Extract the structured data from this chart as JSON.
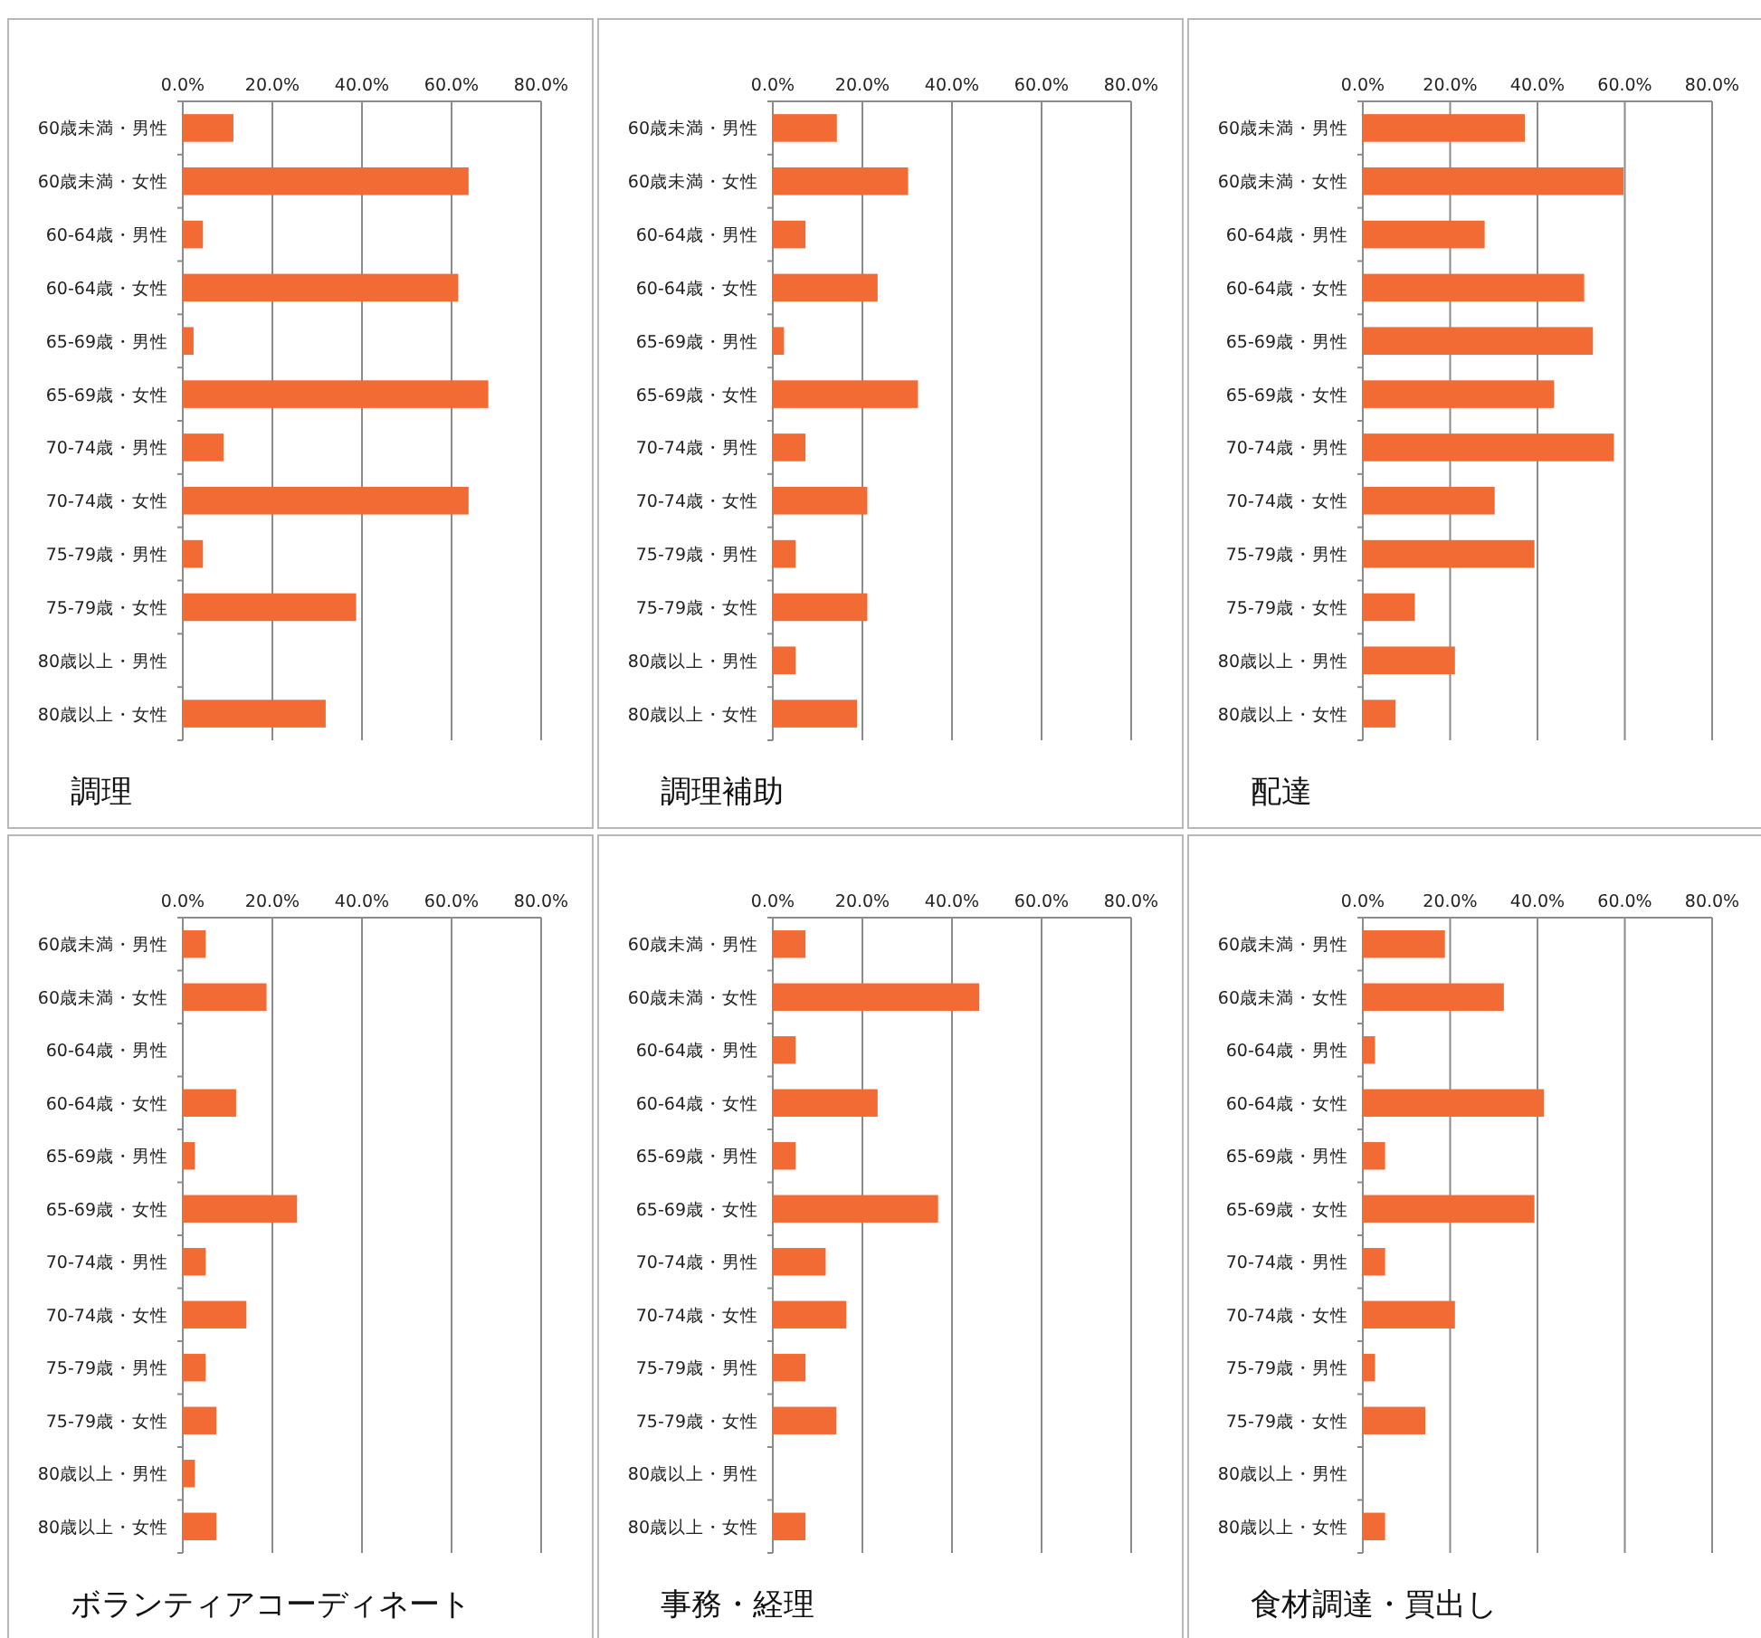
{
  "chart_data": [
    {
      "type": "bar",
      "orientation": "horizontal",
      "title": "調理",
      "categories": [
        "60歳未満・男性",
        "60歳未満・女性",
        "60-64歳・男性",
        "60-64歳・女性",
        "65-69歳・男性",
        "65-69歳・女性",
        "70-74歳・男性",
        "70-74歳・女性",
        "75-79歳・男性",
        "75-79歳・女性",
        "80歳以上・男性",
        "80歳以上・女性"
      ],
      "values": [
        11.3,
        63.8,
        4.5,
        61.5,
        2.4,
        68.2,
        9.1,
        63.8,
        4.5,
        38.7,
        0,
        31.9
      ],
      "color": "#f26b35",
      "xlim": [
        0,
        80
      ],
      "xticks": [
        {
          "value": 0,
          "label": "0.0%"
        },
        {
          "value": 20,
          "label": "20.0%"
        },
        {
          "value": 40,
          "label": "40.0%"
        },
        {
          "value": 60,
          "label": "60.0%"
        },
        {
          "value": 80,
          "label": "80.0%"
        }
      ],
      "grid": "x"
    },
    {
      "type": "bar",
      "orientation": "horizontal",
      "title": "調理補助",
      "categories": [
        "60歳未満・男性",
        "60歳未満・女性",
        "60-64歳・男性",
        "60-64歳・女性",
        "65-69歳・男性",
        "65-69歳・女性",
        "70-74歳・男性",
        "70-74歳・女性",
        "75-79歳・男性",
        "75-79歳・女性",
        "80歳以上・男性",
        "80歳以上・女性"
      ],
      "values": [
        14.3,
        30.2,
        7.3,
        23.4,
        2.5,
        32.4,
        7.3,
        21.1,
        5.1,
        21.1,
        5.1,
        18.8
      ],
      "color": "#f26b35",
      "xlim": [
        0,
        80
      ],
      "xticks": [
        {
          "value": 0,
          "label": "0.0%"
        },
        {
          "value": 20,
          "label": "20.0%"
        },
        {
          "value": 40,
          "label": "40.0%"
        },
        {
          "value": 60,
          "label": "60.0%"
        },
        {
          "value": 80,
          "label": "80.0%"
        }
      ],
      "grid": "x"
    },
    {
      "type": "bar",
      "orientation": "horizontal",
      "title": "配達",
      "categories": [
        "60歳未満・男性",
        "60歳未満・女性",
        "60-64歳・男性",
        "60-64歳・女性",
        "65-69歳・男性",
        "65-69歳・女性",
        "70-74歳・男性",
        "70-74歳・女性",
        "75-79歳・男性",
        "75-79歳・女性",
        "80歳以上・男性",
        "80歳以上・女性"
      ],
      "values": [
        37.1,
        59.7,
        27.9,
        50.7,
        52.7,
        43.8,
        57.5,
        30.2,
        39.3,
        11.9,
        21.1,
        7.5
      ],
      "color": "#f26b35",
      "xlim": [
        0,
        80
      ],
      "xticks": [
        {
          "value": 0,
          "label": "0.0%"
        },
        {
          "value": 20,
          "label": "20.0%"
        },
        {
          "value": 40,
          "label": "40.0%"
        },
        {
          "value": 60,
          "label": "60.0%"
        },
        {
          "value": 80,
          "label": "80.0%"
        }
      ],
      "grid": "x"
    },
    {
      "type": "bar",
      "orientation": "horizontal",
      "title": "ボランティアコーディネート",
      "categories": [
        "60歳未満・男性",
        "60歳未満・女性",
        "60-64歳・男性",
        "60-64歳・女性",
        "65-69歳・男性",
        "65-69歳・女性",
        "70-74歳・男性",
        "70-74歳・女性",
        "75-79歳・男性",
        "75-79歳・女性",
        "80歳以上・男性",
        "80歳以上・女性"
      ],
      "values": [
        5.1,
        18.7,
        0,
        11.9,
        2.7,
        25.5,
        5.1,
        14.2,
        5.1,
        7.5,
        2.7,
        7.5
      ],
      "color": "#f26b35",
      "xlim": [
        0,
        80
      ],
      "xticks": [
        {
          "value": 0,
          "label": "0.0%"
        },
        {
          "value": 20,
          "label": "20.0%"
        },
        {
          "value": 40,
          "label": "40.0%"
        },
        {
          "value": 60,
          "label": "60.0%"
        },
        {
          "value": 80,
          "label": "80.0%"
        }
      ],
      "grid": "x"
    },
    {
      "type": "bar",
      "orientation": "horizontal",
      "title": "事務・経理",
      "categories": [
        "60歳未満・男性",
        "60歳未満・女性",
        "60-64歳・男性",
        "60-64歳・女性",
        "65-69歳・男性",
        "65-69歳・女性",
        "70-74歳・男性",
        "70-74歳・女性",
        "75-79歳・男性",
        "75-79歳・女性",
        "80歳以上・男性",
        "80歳以上・女性"
      ],
      "values": [
        7.3,
        46.1,
        5.1,
        23.4,
        5.1,
        36.9,
        11.8,
        16.4,
        7.3,
        14.2,
        0,
        7.3
      ],
      "color": "#f26b35",
      "xlim": [
        0,
        80
      ],
      "xticks": [
        {
          "value": 0,
          "label": "0.0%"
        },
        {
          "value": 20,
          "label": "20.0%"
        },
        {
          "value": 40,
          "label": "40.0%"
        },
        {
          "value": 60,
          "label": "60.0%"
        },
        {
          "value": 80,
          "label": "80.0%"
        }
      ],
      "grid": "x"
    },
    {
      "type": "bar",
      "orientation": "horizontal",
      "title": "食材調達・買出し",
      "categories": [
        "60歳未満・男性",
        "60歳未満・女性",
        "60-64歳・男性",
        "60-64歳・女性",
        "65-69歳・男性",
        "65-69歳・女性",
        "70-74歳・男性",
        "70-74歳・女性",
        "75-79歳・男性",
        "75-79歳・女性",
        "80歳以上・男性",
        "80歳以上・女性"
      ],
      "values": [
        18.8,
        32.3,
        2.8,
        41.5,
        5.1,
        39.3,
        5.1,
        21.1,
        2.8,
        14.3,
        0,
        5.1
      ],
      "color": "#f26b35",
      "xlim": [
        0,
        80
      ],
      "xticks": [
        {
          "value": 0,
          "label": "0.0%"
        },
        {
          "value": 20,
          "label": "20.0%"
        },
        {
          "value": 40,
          "label": "40.0%"
        },
        {
          "value": 60,
          "label": "60.0%"
        },
        {
          "value": 80,
          "label": "80.0%"
        }
      ],
      "grid": "x"
    }
  ]
}
